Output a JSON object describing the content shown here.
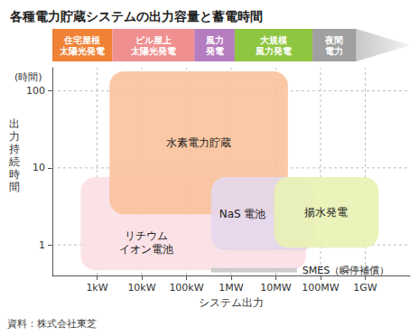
{
  "chart_data": {
    "type": "region",
    "title": "各種電力貯蔵システムの出力容量と蓄電時間",
    "x_label": "システム出力",
    "y_label": "出力持続時間",
    "y_unit": "(時間)",
    "source": "資料：株式会社東芝",
    "log": true,
    "grid": true,
    "xlim": [
      0.1,
      10000000
    ],
    "xticks": [
      {
        "value": 1,
        "label": "1kW"
      },
      {
        "value": 10,
        "label": "10kW"
      },
      {
        "value": 100,
        "label": "100kW"
      },
      {
        "value": 1000,
        "label": "1MW"
      },
      {
        "value": 10000,
        "label": "10MW"
      },
      {
        "value": 100000,
        "label": "100MW"
      },
      {
        "value": 1000000,
        "label": "1GW"
      }
    ],
    "ylim": [
      0.4,
      200
    ],
    "yticks": [
      1,
      10,
      100
    ],
    "series": [
      {
        "name": "リチウム\nイオン電池",
        "type": "area",
        "color": "#fbdfe4",
        "x": [
          0.43,
          47000
        ],
        "y": [
          0.47,
          7.6
        ]
      },
      {
        "name": "水素電力貯蔵",
        "type": "area",
        "color": "#f9c29a",
        "x": [
          1.9,
          18600
        ],
        "y": [
          2.5,
          180
        ]
      },
      {
        "name": "NaS 電池",
        "type": "area",
        "color": "#e4d7ec",
        "x": [
          355,
          76000
        ],
        "y": [
          0.85,
          7.6
        ]
      },
      {
        "name": "揚水発電",
        "type": "area",
        "color": "#e9f2b3",
        "x": [
          9100,
          2000000
        ],
        "y": [
          0.92,
          7.6
        ]
      },
      {
        "name": "SMES（瞬停補償）",
        "type": "band",
        "color": "#cccccc",
        "x": [
          355,
          29500
        ],
        "y": [
          0.44,
          0.5
        ]
      }
    ],
    "applications": [
      {
        "name": "住宅屋根\n太陽光発電",
        "color": "#f08236",
        "x": [
          0.1,
          2.2
        ]
      },
      {
        "name": "ビル屋上\n太陽光発電",
        "color": "#ef8f8f",
        "x": [
          2.2,
          150
        ]
      },
      {
        "name": "風力\n発電",
        "color": "#b57cc0",
        "x": [
          150,
          1200
        ]
      },
      {
        "name": "大規模\n風力発電",
        "color": "#8fc641",
        "x": [
          1200,
          66000
        ]
      },
      {
        "name": "夜間\n電力",
        "color": "#a0a0a0",
        "x": [
          66000,
          630000
        ]
      }
    ]
  }
}
